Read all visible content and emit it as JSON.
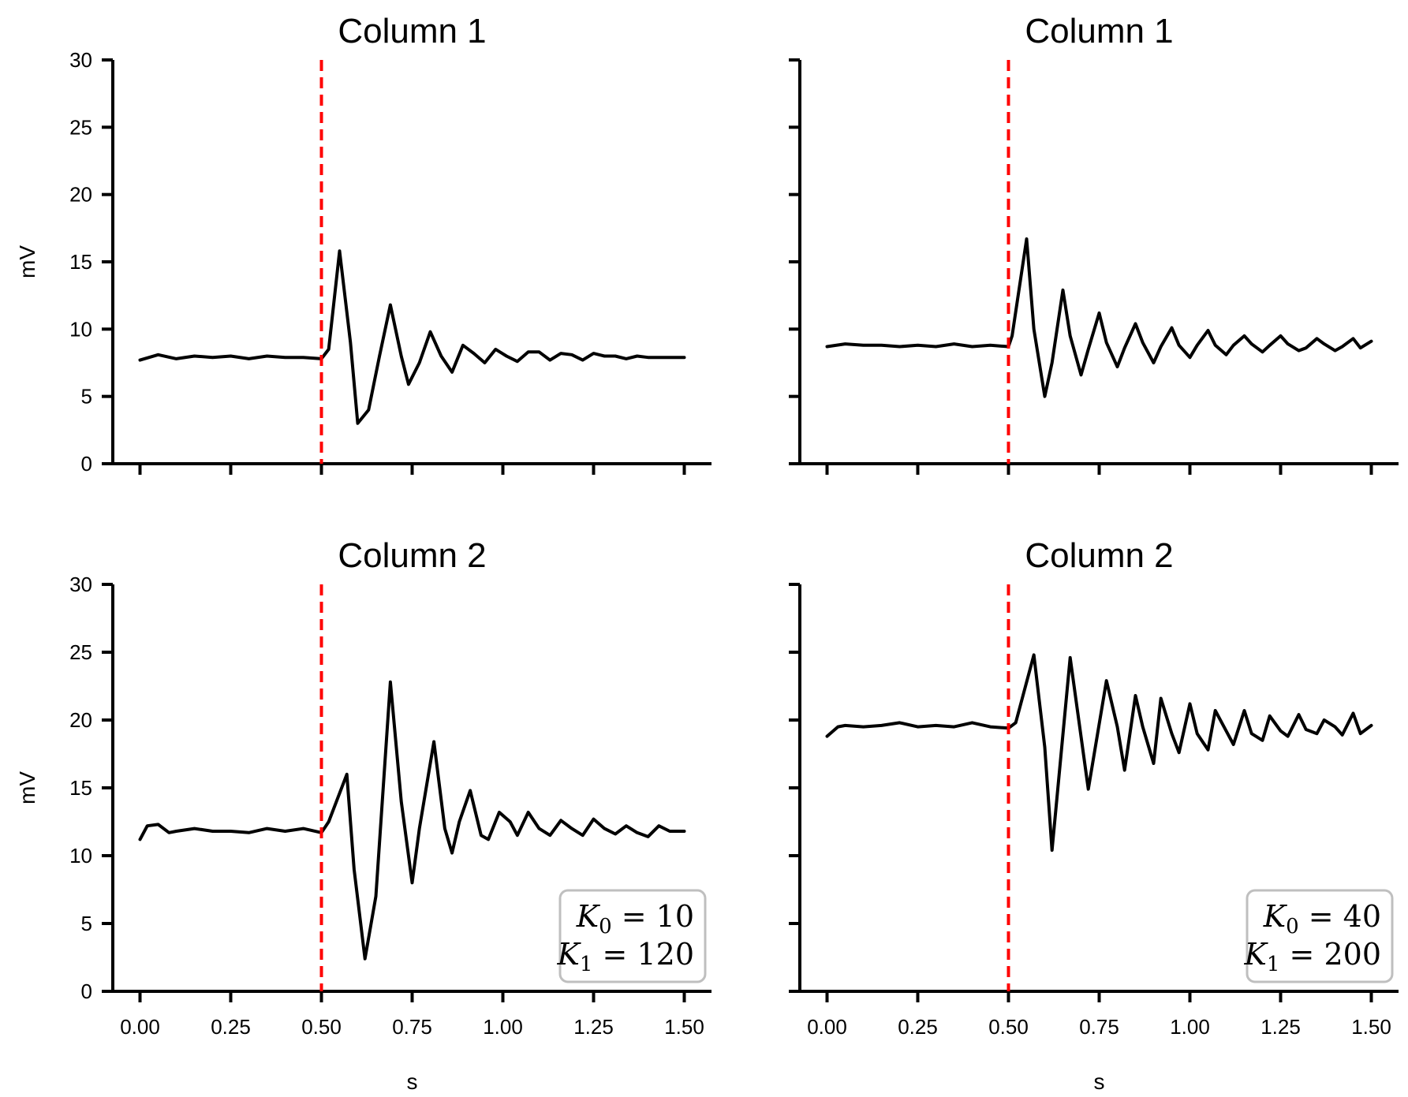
{
  "chart_data": [
    {
      "type": "line",
      "title": "Column 1",
      "xlabel": "",
      "ylabel": "mV",
      "xlim": [
        -0.075,
        1.575
      ],
      "ylim": [
        0,
        30
      ],
      "xticks": [
        0,
        0.25,
        0.5,
        0.75,
        1.0,
        1.25,
        1.5
      ],
      "xtick_labels": [],
      "yticks": [
        0,
        5,
        10,
        15,
        20,
        25,
        30
      ],
      "ytick_labels": [
        "0",
        "5",
        "10",
        "15",
        "20",
        "25",
        "30"
      ],
      "vline": {
        "x": 0.5,
        "color": "#ff0000",
        "style": "dashed"
      },
      "series": [
        {
          "color": "#000000",
          "x": [
            0.0,
            0.05,
            0.1,
            0.15,
            0.2,
            0.25,
            0.3,
            0.35,
            0.4,
            0.45,
            0.5,
            0.52,
            0.55,
            0.58,
            0.6,
            0.63,
            0.66,
            0.69,
            0.72,
            0.74,
            0.77,
            0.8,
            0.83,
            0.86,
            0.89,
            0.92,
            0.95,
            0.98,
            1.01,
            1.04,
            1.07,
            1.1,
            1.13,
            1.16,
            1.19,
            1.22,
            1.25,
            1.28,
            1.31,
            1.34,
            1.37,
            1.4,
            1.43,
            1.46,
            1.5
          ],
          "y": [
            7.7,
            8.1,
            7.8,
            8.0,
            7.9,
            8.0,
            7.8,
            8.0,
            7.9,
            7.9,
            7.8,
            8.5,
            15.8,
            9.0,
            3.0,
            4.0,
            8.0,
            11.8,
            8.0,
            5.9,
            7.5,
            9.8,
            8.0,
            6.8,
            8.8,
            8.2,
            7.5,
            8.5,
            8.0,
            7.6,
            8.3,
            8.3,
            7.7,
            8.2,
            8.1,
            7.7,
            8.2,
            8.0,
            8.0,
            7.8,
            8.0,
            7.9,
            7.9,
            7.9,
            7.9
          ]
        }
      ]
    },
    {
      "type": "line",
      "title": "Column 1",
      "xlabel": "",
      "ylabel": "",
      "xlim": [
        -0.075,
        1.575
      ],
      "ylim": [
        0,
        30
      ],
      "xticks": [
        0,
        0.25,
        0.5,
        0.75,
        1.0,
        1.25,
        1.5
      ],
      "xtick_labels": [],
      "yticks": [
        0,
        5,
        10,
        15,
        20,
        25,
        30
      ],
      "ytick_labels": [],
      "vline": {
        "x": 0.5,
        "color": "#ff0000",
        "style": "dashed"
      },
      "series": [
        {
          "color": "#000000",
          "x": [
            0.0,
            0.05,
            0.1,
            0.15,
            0.2,
            0.25,
            0.3,
            0.35,
            0.4,
            0.45,
            0.5,
            0.51,
            0.55,
            0.57,
            0.6,
            0.62,
            0.65,
            0.67,
            0.7,
            0.72,
            0.75,
            0.77,
            0.8,
            0.82,
            0.85,
            0.87,
            0.9,
            0.92,
            0.95,
            0.97,
            1.0,
            1.02,
            1.05,
            1.07,
            1.1,
            1.12,
            1.15,
            1.17,
            1.2,
            1.22,
            1.25,
            1.27,
            1.3,
            1.32,
            1.35,
            1.37,
            1.4,
            1.42,
            1.45,
            1.47,
            1.5
          ],
          "y": [
            8.7,
            8.9,
            8.8,
            8.8,
            8.7,
            8.8,
            8.7,
            8.9,
            8.7,
            8.8,
            8.7,
            9.5,
            16.7,
            10.0,
            5.0,
            7.5,
            12.9,
            9.5,
            6.6,
            8.5,
            11.2,
            9.0,
            7.2,
            8.6,
            10.4,
            9.0,
            7.5,
            8.7,
            10.1,
            8.8,
            7.9,
            8.8,
            9.9,
            8.8,
            8.1,
            8.8,
            9.5,
            8.9,
            8.3,
            8.8,
            9.5,
            8.9,
            8.4,
            8.6,
            9.3,
            8.9,
            8.4,
            8.7,
            9.3,
            8.6,
            9.1
          ]
        }
      ]
    },
    {
      "type": "line",
      "title": "Column 2",
      "xlabel": "s",
      "ylabel": "mV",
      "xlim": [
        -0.075,
        1.575
      ],
      "ylim": [
        0,
        30
      ],
      "xticks": [
        0,
        0.25,
        0.5,
        0.75,
        1.0,
        1.25,
        1.5
      ],
      "xtick_labels": [
        "0.00",
        "0.25",
        "0.50",
        "0.75",
        "1.00",
        "1.25",
        "1.50"
      ],
      "yticks": [
        0,
        5,
        10,
        15,
        20,
        25,
        30
      ],
      "ytick_labels": [
        "0",
        "5",
        "10",
        "15",
        "20",
        "25",
        "30"
      ],
      "vline": {
        "x": 0.5,
        "color": "#ff0000",
        "style": "dashed"
      },
      "legend": {
        "position": "bottom-right",
        "lines": [
          "K_0 = 10",
          "K_1 = 120"
        ]
      },
      "series": [
        {
          "color": "#000000",
          "x": [
            0.0,
            0.02,
            0.05,
            0.08,
            0.1,
            0.15,
            0.2,
            0.25,
            0.3,
            0.35,
            0.4,
            0.45,
            0.5,
            0.52,
            0.57,
            0.59,
            0.62,
            0.65,
            0.69,
            0.72,
            0.75,
            0.77,
            0.81,
            0.84,
            0.86,
            0.88,
            0.91,
            0.94,
            0.96,
            0.99,
            1.02,
            1.04,
            1.07,
            1.1,
            1.13,
            1.16,
            1.19,
            1.22,
            1.25,
            1.28,
            1.31,
            1.34,
            1.37,
            1.4,
            1.43,
            1.46,
            1.5
          ],
          "y": [
            11.2,
            12.2,
            12.3,
            11.7,
            11.8,
            12.0,
            11.8,
            11.8,
            11.7,
            12.0,
            11.8,
            12.0,
            11.7,
            12.5,
            16.0,
            9.0,
            2.4,
            7.0,
            22.8,
            14.0,
            8.0,
            12.0,
            18.4,
            12.0,
            10.2,
            12.5,
            14.8,
            11.5,
            11.2,
            13.2,
            12.5,
            11.5,
            13.2,
            12.0,
            11.5,
            12.6,
            12.0,
            11.5,
            12.7,
            12.0,
            11.6,
            12.2,
            11.7,
            11.4,
            12.2,
            11.8,
            11.8
          ]
        }
      ]
    },
    {
      "type": "line",
      "title": "Column 2",
      "xlabel": "s",
      "ylabel": "",
      "xlim": [
        -0.075,
        1.575
      ],
      "ylim": [
        0,
        30
      ],
      "xticks": [
        0,
        0.25,
        0.5,
        0.75,
        1.0,
        1.25,
        1.5
      ],
      "xtick_labels": [
        "0.00",
        "0.25",
        "0.50",
        "0.75",
        "1.00",
        "1.25",
        "1.50"
      ],
      "yticks": [
        0,
        5,
        10,
        15,
        20,
        25,
        30
      ],
      "ytick_labels": [],
      "vline": {
        "x": 0.5,
        "color": "#ff0000",
        "style": "dashed"
      },
      "legend": {
        "position": "bottom-right",
        "lines": [
          "K_0 = 40",
          "K_1 = 200"
        ]
      },
      "series": [
        {
          "color": "#000000",
          "x": [
            0.0,
            0.03,
            0.05,
            0.1,
            0.15,
            0.2,
            0.25,
            0.3,
            0.35,
            0.4,
            0.45,
            0.5,
            0.52,
            0.57,
            0.6,
            0.62,
            0.67,
            0.72,
            0.77,
            0.8,
            0.82,
            0.85,
            0.87,
            0.9,
            0.92,
            0.95,
            0.97,
            1.0,
            1.02,
            1.05,
            1.07,
            1.1,
            1.12,
            1.15,
            1.17,
            1.2,
            1.22,
            1.25,
            1.27,
            1.3,
            1.32,
            1.35,
            1.37,
            1.4,
            1.42,
            1.45,
            1.47,
            1.5
          ],
          "y": [
            18.8,
            19.5,
            19.6,
            19.5,
            19.6,
            19.8,
            19.5,
            19.6,
            19.5,
            19.8,
            19.5,
            19.4,
            19.8,
            24.8,
            18.0,
            10.4,
            24.6,
            14.9,
            22.9,
            19.5,
            16.3,
            21.8,
            19.5,
            16.8,
            21.6,
            19.0,
            17.6,
            21.2,
            19.0,
            17.8,
            20.7,
            19.2,
            18.2,
            20.7,
            19.0,
            18.5,
            20.3,
            19.2,
            18.8,
            20.4,
            19.3,
            19.0,
            20.0,
            19.5,
            18.9,
            20.5,
            19.0,
            19.6
          ]
        }
      ]
    }
  ]
}
